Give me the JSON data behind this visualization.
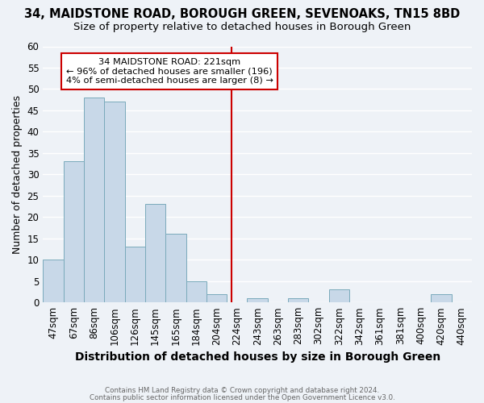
{
  "title": "34, MAIDSTONE ROAD, BOROUGH GREEN, SEVENOAKS, TN15 8BD",
  "subtitle": "Size of property relative to detached houses in Borough Green",
  "xlabel": "Distribution of detached houses by size in Borough Green",
  "ylabel": "Number of detached properties",
  "bin_labels": [
    "47sqm",
    "67sqm",
    "86sqm",
    "106sqm",
    "126sqm",
    "145sqm",
    "165sqm",
    "184sqm",
    "204sqm",
    "224sqm",
    "243sqm",
    "263sqm",
    "283sqm",
    "302sqm",
    "322sqm",
    "342sqm",
    "361sqm",
    "381sqm",
    "400sqm",
    "420sqm",
    "440sqm"
  ],
  "bar_heights": [
    10,
    33,
    48,
    47,
    13,
    23,
    16,
    5,
    2,
    0,
    1,
    0,
    1,
    0,
    3,
    0,
    0,
    0,
    0,
    2,
    0
  ],
  "bar_color": "#c8d8e8",
  "bar_edge_color": "#7aaabb",
  "ylim": [
    0,
    60
  ],
  "yticks": [
    0,
    5,
    10,
    15,
    20,
    25,
    30,
    35,
    40,
    45,
    50,
    55,
    60
  ],
  "property_line_x": 8.75,
  "property_line_color": "#cc0000",
  "annotation_title": "34 MAIDSTONE ROAD: 221sqm",
  "annotation_line1": "← 96% of detached houses are smaller (196)",
  "annotation_line2": "4% of semi-detached houses are larger (8) →",
  "footer1": "Contains HM Land Registry data © Crown copyright and database right 2024.",
  "footer2": "Contains public sector information licensed under the Open Government Licence v3.0.",
  "background_color": "#eef2f7",
  "grid_color": "#ffffff",
  "title_fontsize": 10.5,
  "subtitle_fontsize": 9.5,
  "ylabel_fontsize": 9,
  "xlabel_fontsize": 10
}
